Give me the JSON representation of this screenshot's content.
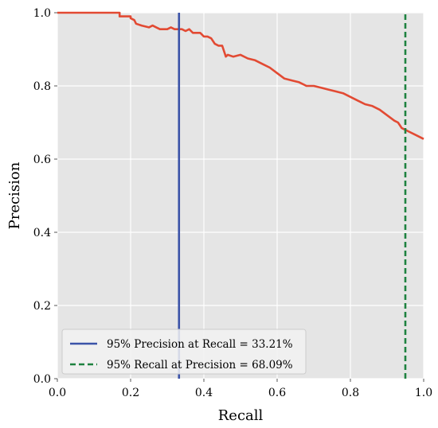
{
  "chart_data": {
    "type": "line",
    "xlabel": "Recall",
    "ylabel": "Precision",
    "xlim": [
      0.0,
      1.0
    ],
    "ylim": [
      0.0,
      1.0
    ],
    "xticks": [
      "0.0",
      "0.2",
      "0.4",
      "0.6",
      "0.8",
      "1.0"
    ],
    "yticks": [
      "0.0",
      "0.2",
      "0.4",
      "0.6",
      "0.8",
      "1.0"
    ],
    "grid": true,
    "legend_position": "lower-left",
    "background_color": "#e5e5e5",
    "series": [
      {
        "color": "#e24a33",
        "x": [
          0.0,
          0.17,
          0.17,
          0.2,
          0.2,
          0.21,
          0.215,
          0.23,
          0.25,
          0.26,
          0.27,
          0.28,
          0.3,
          0.31,
          0.32,
          0.33,
          0.34,
          0.35,
          0.36,
          0.365,
          0.37,
          0.38,
          0.39,
          0.395,
          0.4,
          0.41,
          0.42,
          0.43,
          0.44,
          0.45,
          0.455,
          0.46,
          0.465,
          0.48,
          0.5,
          0.52,
          0.54,
          0.56,
          0.58,
          0.6,
          0.62,
          0.64,
          0.66,
          0.68,
          0.7,
          0.72,
          0.74,
          0.76,
          0.78,
          0.8,
          0.82,
          0.84,
          0.86,
          0.88,
          0.9,
          0.92,
          0.93,
          0.94,
          0.95,
          0.96,
          0.98,
          1.0
        ],
        "y": [
          1.0,
          1.0,
          0.99,
          0.99,
          0.985,
          0.98,
          0.97,
          0.965,
          0.96,
          0.965,
          0.96,
          0.955,
          0.955,
          0.96,
          0.955,
          0.955,
          0.955,
          0.95,
          0.955,
          0.95,
          0.945,
          0.945,
          0.945,
          0.94,
          0.935,
          0.935,
          0.93,
          0.915,
          0.91,
          0.91,
          0.895,
          0.88,
          0.885,
          0.88,
          0.885,
          0.875,
          0.87,
          0.86,
          0.85,
          0.835,
          0.82,
          0.815,
          0.81,
          0.8,
          0.8,
          0.795,
          0.79,
          0.785,
          0.78,
          0.77,
          0.76,
          0.75,
          0.745,
          0.735,
          0.72,
          0.705,
          0.7,
          0.685,
          0.68,
          0.675,
          0.665,
          0.655
        ]
      },
      {
        "name": "95% Precision at Recall = 33.21%",
        "style": "solid",
        "color": "#3b53a8",
        "x": [
          0.3321,
          0.3321
        ],
        "y": [
          0.0,
          1.0
        ]
      },
      {
        "name": "95% Recall at Precision = 68.09%",
        "style": "dashed",
        "color": "#1e8240",
        "x": [
          0.95,
          0.95
        ],
        "y": [
          0.0,
          1.0
        ]
      }
    ]
  }
}
